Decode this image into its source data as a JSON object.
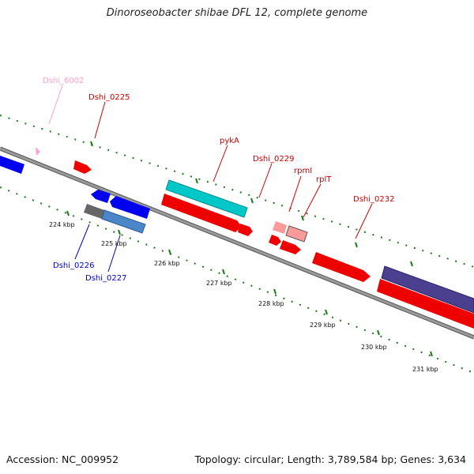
{
  "title": "Dinoroseobacter shibae DFL 12, complete genome",
  "footer": {
    "accession_label": "Accession: NC_009952",
    "summary": "Topology: circular; Length: 3,789,584 bp; Genes: 3,634"
  },
  "colors": {
    "backbone": "#8a8a8a",
    "forward_gene": "#ff0000",
    "reverse_gene": "#0000ff",
    "rna": "#00cccc",
    "tick": "#1a7a1a",
    "pseudo": "#ff9999"
  },
  "scale_ticks": [
    "224 kbp",
    "225 kbp",
    "226 kbp",
    "227 kbp",
    "228 kbp",
    "229 kbp",
    "230 kbp",
    "231 kbp"
  ],
  "gene_labels": {
    "dshi_6002": "Dshi_6002",
    "dshi_0225": "Dshi_0225",
    "pyka": "pykA",
    "dshi_0229": "Dshi_0229",
    "rpmi": "rpmI",
    "rplt": "rplT",
    "dshi_0232": "Dshi_0232",
    "dshi_0226": "Dshi_0226",
    "dshi_0227": "Dshi_0227"
  }
}
